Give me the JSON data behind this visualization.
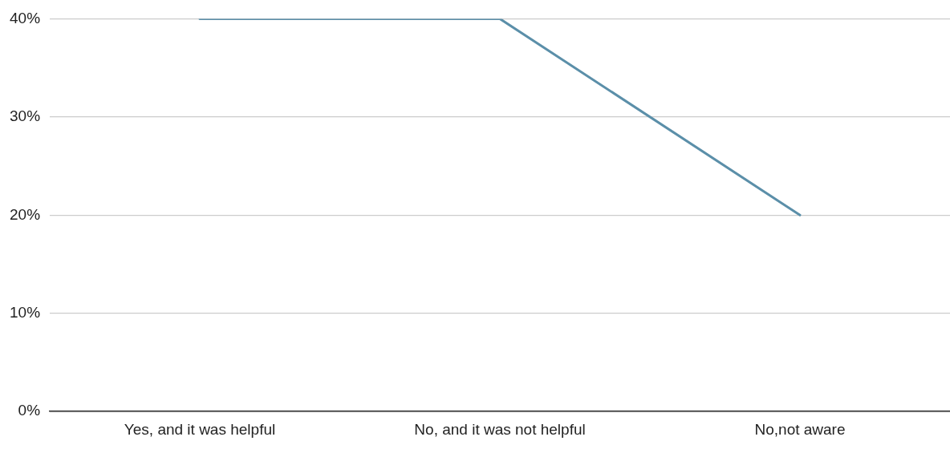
{
  "chart_data": {
    "type": "line",
    "categories": [
      "Yes, and it was helpful",
      "No, and it was not helpful",
      "No,not aware"
    ],
    "series": [
      {
        "color": "#5b8fa9",
        "values": [
          40,
          40,
          20
        ]
      }
    ],
    "ylim": [
      0,
      40
    ],
    "yticks": [
      {
        "value": 0,
        "label": "0%"
      },
      {
        "value": 10,
        "label": "10%"
      },
      {
        "value": 20,
        "label": "20%"
      },
      {
        "value": 30,
        "label": "30%"
      },
      {
        "value": 40,
        "label": "40%"
      }
    ],
    "grid": "y",
    "legend": false,
    "marker": "none",
    "line_style": "solid"
  }
}
